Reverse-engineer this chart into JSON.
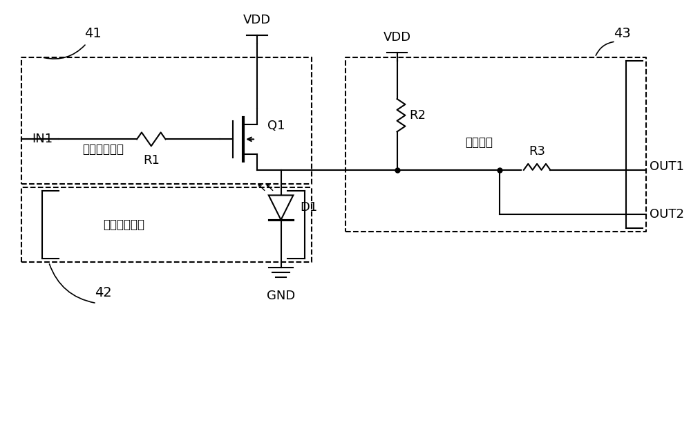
{
  "bg_color": "#ffffff",
  "line_color": "#000000",
  "dashed_color": "#000000",
  "text_color": "#000000",
  "title": "",
  "labels": {
    "VDD_top": "VDD",
    "VDD_right": "VDD",
    "GND": "GND",
    "IN1": "IN1",
    "Q1": "Q1",
    "R1": "R1",
    "R2": "R2",
    "R3": "R3",
    "D1": "D1",
    "OUT1": "OUT1",
    "OUT2": "OUT2",
    "unit41": "41",
    "unit42": "42",
    "unit43": "43",
    "unit_learn": "学习触发单元",
    "unit_ir": "红外接收单元",
    "unit_out": "输出单元"
  },
  "figsize": [
    10.0,
    6.35
  ],
  "dpi": 100
}
